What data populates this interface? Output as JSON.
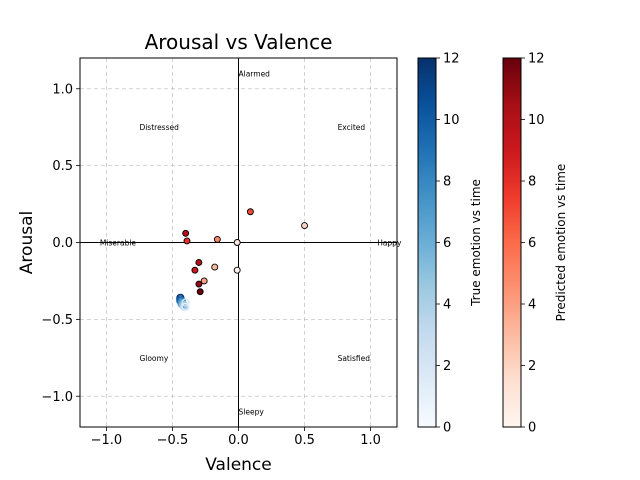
{
  "chart_data": {
    "type": "scatter",
    "title": "Arousal vs Valence",
    "xlabel": "Valence",
    "ylabel": "Arousal",
    "xlim": [
      -1.2,
      1.2
    ],
    "ylim": [
      -1.2,
      1.2
    ],
    "xticks": [
      -1.0,
      -0.5,
      0.0,
      0.5,
      1.0
    ],
    "yticks": [
      -1.0,
      -0.5,
      0.0,
      0.5,
      1.0
    ],
    "xtick_labels": [
      "−1.0",
      "−0.5",
      "0.0",
      "0.5",
      "1.0"
    ],
    "ytick_labels": [
      "−1.0",
      "−0.5",
      "0.0",
      "0.5",
      "1.0"
    ],
    "grid": true,
    "annotations": [
      {
        "text": "Alarmed",
        "x": 0.0,
        "y": 1.1
      },
      {
        "text": "Distressed",
        "x": -0.75,
        "y": 0.75
      },
      {
        "text": "Excited",
        "x": 0.75,
        "y": 0.75
      },
      {
        "text": "Miserable",
        "x": -1.05,
        "y": 0.0
      },
      {
        "text": "Happy",
        "x": 1.05,
        "y": 0.0
      },
      {
        "text": "Gloomy",
        "x": -0.75,
        "y": -0.75
      },
      {
        "text": "Satisfied",
        "x": 0.75,
        "y": -0.75
      },
      {
        "text": "Sleepy",
        "x": 0.0,
        "y": -1.1
      }
    ],
    "series": [
      {
        "colormap": "Blues",
        "marker": "hollow circle",
        "points": [
          {
            "x": -0.44,
            "y": -0.36,
            "t": 12
          },
          {
            "x": -0.44,
            "y": -0.37,
            "t": 11
          },
          {
            "x": -0.44,
            "y": -0.38,
            "t": 10
          },
          {
            "x": -0.43,
            "y": -0.38,
            "t": 9
          },
          {
            "x": -0.43,
            "y": -0.39,
            "t": 8
          },
          {
            "x": -0.43,
            "y": -0.4,
            "t": 7
          },
          {
            "x": -0.42,
            "y": -0.4,
            "t": 6
          },
          {
            "x": -0.42,
            "y": -0.41,
            "t": 5
          },
          {
            "x": -0.41,
            "y": -0.41,
            "t": 4
          },
          {
            "x": -0.41,
            "y": -0.42,
            "t": 3
          },
          {
            "x": -0.4,
            "y": -0.39,
            "t": 2
          },
          {
            "x": -0.4,
            "y": -0.42,
            "t": 1
          }
        ]
      },
      {
        "colormap": "Reds",
        "marker": "filled circle, black edge",
        "points": [
          {
            "x": -0.01,
            "y": -0.18,
            "t": 0
          },
          {
            "x": -0.01,
            "y": 0.0,
            "t": 1
          },
          {
            "x": 0.5,
            "y": 0.11,
            "t": 2
          },
          {
            "x": -0.18,
            "y": -0.16,
            "t": 3
          },
          {
            "x": -0.26,
            "y": -0.25,
            "t": 4
          },
          {
            "x": -0.16,
            "y": 0.02,
            "t": 5
          },
          {
            "x": 0.09,
            "y": 0.2,
            "t": 7
          },
          {
            "x": -0.39,
            "y": 0.01,
            "t": 8
          },
          {
            "x": -0.33,
            "y": -0.18,
            "t": 9
          },
          {
            "x": -0.4,
            "y": 0.06,
            "t": 10
          },
          {
            "x": -0.3,
            "y": -0.13,
            "t": 10
          },
          {
            "x": -0.3,
            "y": -0.27,
            "t": 11
          },
          {
            "x": -0.29,
            "y": -0.32,
            "t": 12
          }
        ]
      }
    ],
    "colorbars": [
      {
        "label": "True emotion vs time",
        "colormap": "Blues",
        "range": [
          0,
          12
        ],
        "ticks": [
          0,
          2,
          4,
          6,
          8,
          10,
          12
        ],
        "tick_labels": [
          "0",
          "2",
          "4",
          "6",
          "8",
          "10",
          "12"
        ]
      },
      {
        "label": "Predicted emotion vs time",
        "colormap": "Reds",
        "range": [
          0,
          12
        ],
        "ticks": [
          0,
          2,
          4,
          6,
          8,
          10,
          12
        ],
        "tick_labels": [
          "0",
          "2",
          "4",
          "6",
          "8",
          "10",
          "12"
        ]
      }
    ]
  }
}
